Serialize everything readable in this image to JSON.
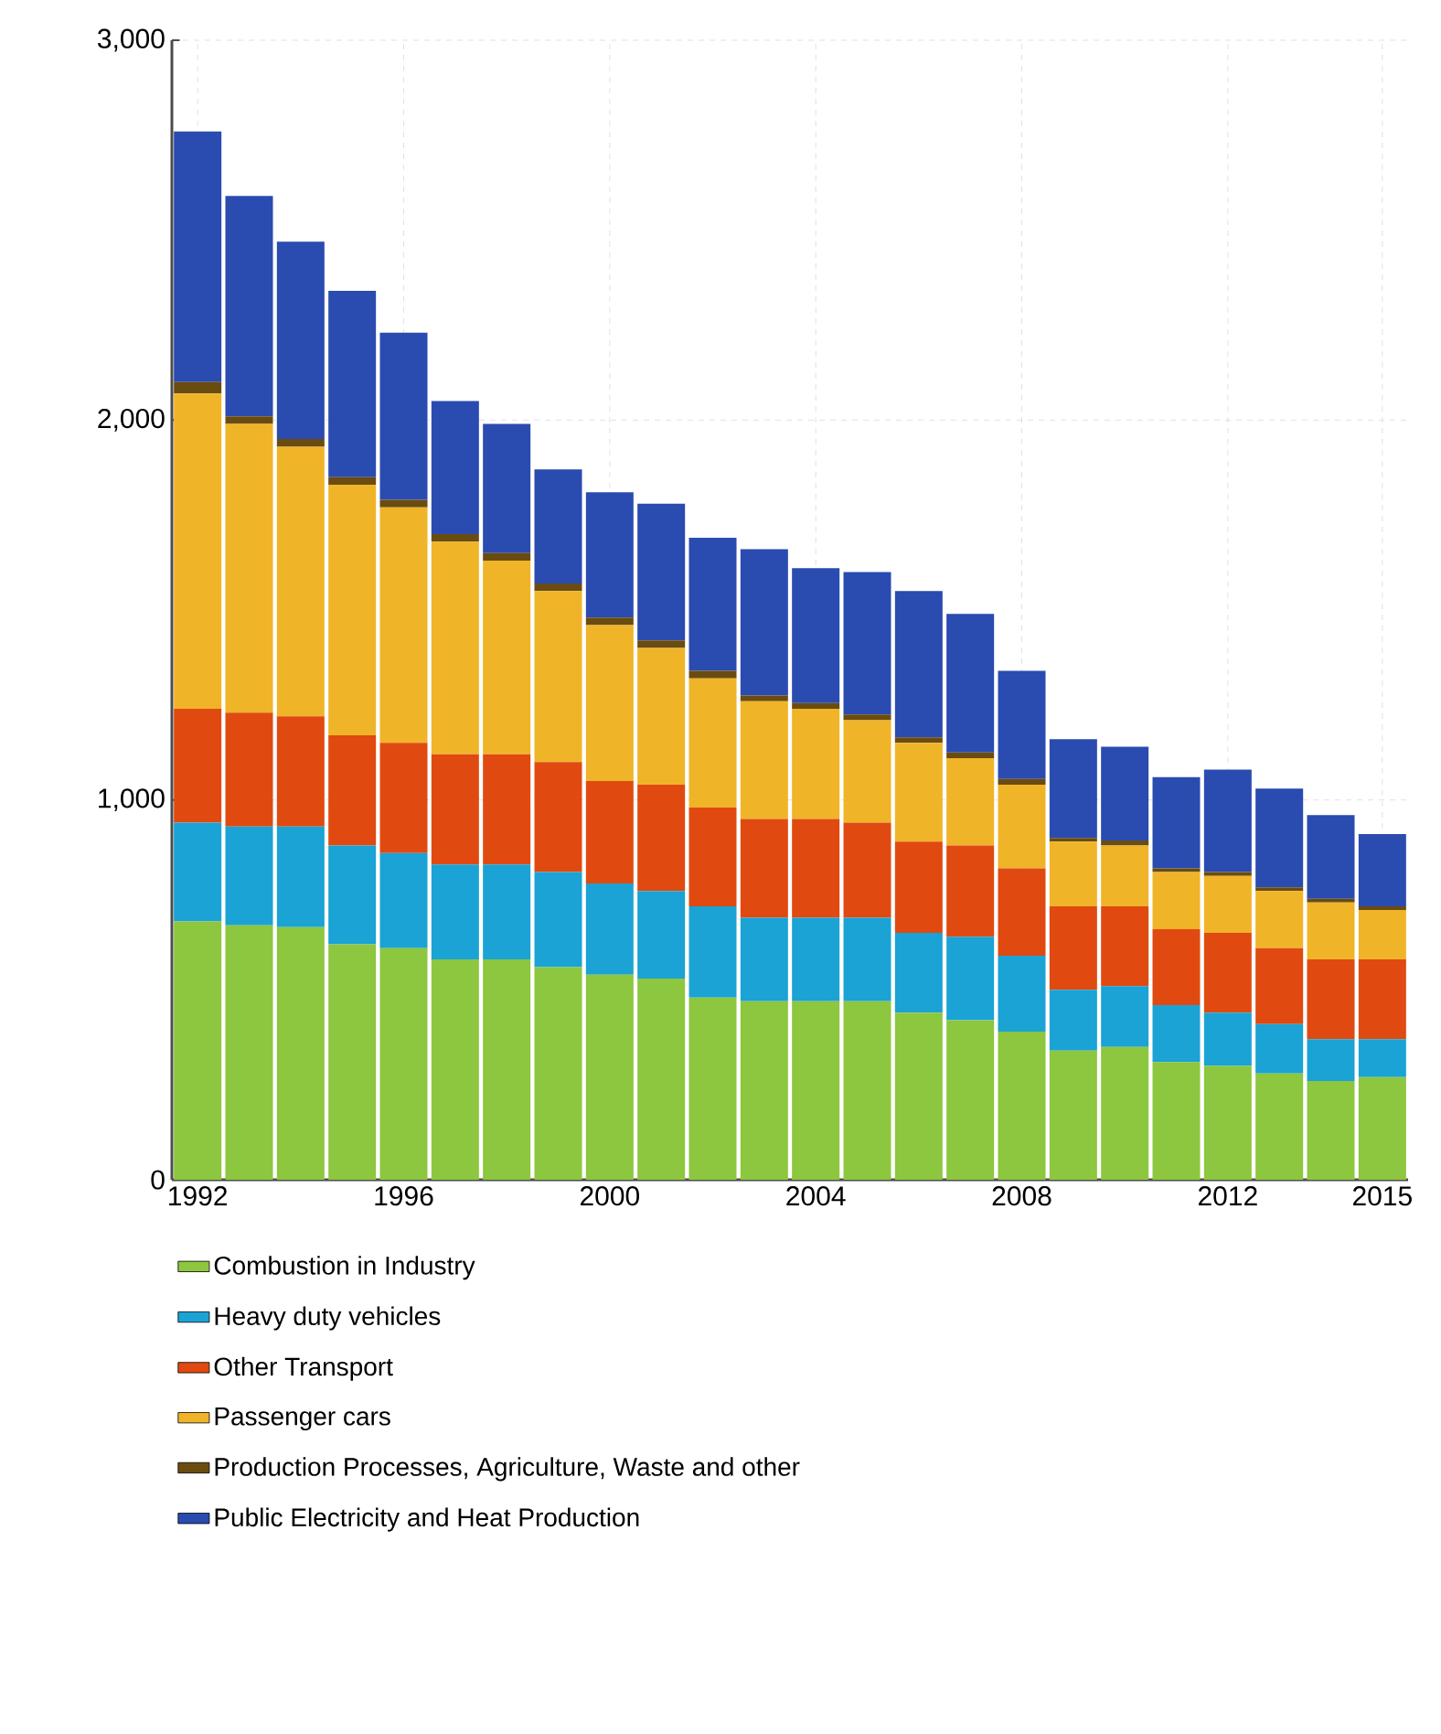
{
  "chart_data": {
    "type": "bar",
    "stacked": true,
    "categories": [
      "1992",
      null,
      null,
      null,
      "1996",
      null,
      null,
      null,
      "2000",
      null,
      null,
      null,
      "2004",
      null,
      null,
      null,
      "2008",
      null,
      null,
      null,
      "2012",
      null,
      null,
      "2015"
    ],
    "series": [
      {
        "name": "Combustion in Industry",
        "color": "#8dc63f",
        "values": [
          680,
          670,
          665,
          620,
          610,
          580,
          580,
          560,
          540,
          530,
          480,
          470,
          470,
          470,
          440,
          420,
          390,
          340,
          350,
          310,
          300,
          280,
          260,
          270
        ]
      },
      {
        "name": "Heavy duty vehicles",
        "color": "#1aa3d4",
        "values": [
          260,
          260,
          265,
          260,
          250,
          250,
          250,
          250,
          240,
          230,
          240,
          220,
          220,
          220,
          210,
          220,
          200,
          160,
          160,
          150,
          140,
          130,
          110,
          100
        ]
      },
      {
        "name": "Other Transport",
        "color": "#e04a10",
        "values": [
          300,
          300,
          290,
          290,
          290,
          290,
          290,
          290,
          270,
          280,
          260,
          260,
          260,
          250,
          240,
          240,
          230,
          220,
          210,
          200,
          210,
          200,
          210,
          210
        ]
      },
      {
        "name": "Passenger cars",
        "color": "#f0b428",
        "values": [
          830,
          760,
          710,
          660,
          620,
          560,
          510,
          450,
          410,
          360,
          340,
          310,
          290,
          270,
          260,
          230,
          220,
          170,
          160,
          150,
          150,
          150,
          150,
          130
        ]
      },
      {
        "name": "Production Processes, Agriculture, Waste and other",
        "color": "#6b4c10",
        "values": [
          30,
          20,
          20,
          20,
          20,
          20,
          20,
          20,
          20,
          20,
          20,
          15,
          15,
          15,
          15,
          15,
          15,
          10,
          13,
          10,
          10,
          10,
          10,
          10
        ]
      },
      {
        "name": "Public Electricity and Heat Production",
        "color": "#2a4bb0",
        "values": [
          660,
          580,
          520,
          490,
          440,
          350,
          340,
          300,
          330,
          360,
          350,
          385,
          355,
          375,
          385,
          365,
          285,
          260,
          247,
          240,
          270,
          260,
          220,
          190
        ]
      }
    ],
    "ylim": [
      0,
      3000
    ],
    "yticks": [
      0,
      {
        "value": 1000,
        "label": "1,000"
      },
      {
        "value": 2000,
        "label": "2,000"
      },
      {
        "value": 3000,
        "label": "3,000"
      }
    ],
    "grid": true,
    "legend": "bottom"
  }
}
